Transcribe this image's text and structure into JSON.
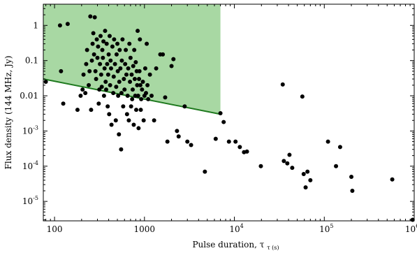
{
  "chart_data": {
    "type": "scatter",
    "xlabel": "Pulse duration, τ",
    "xlabel_sub": "τ (s)",
    "ylabel": "Flux density (144 MHz, Jy)",
    "x_scale": "log",
    "y_scale": "log",
    "xlim": [
      75,
      1000000
    ],
    "ylim": [
      2.8e-06,
      4
    ],
    "grid": false,
    "colors": {
      "points": "#000000",
      "region_fill": "#a8d8a3",
      "line": "#1f7a1f"
    },
    "x_ticks": [
      {
        "value": 100,
        "label": "100"
      },
      {
        "value": 1000,
        "label": "1000"
      },
      {
        "value": 10000,
        "label": "10",
        "exp": "4"
      },
      {
        "value": 100000,
        "label": "10",
        "exp": "5"
      },
      {
        "value": 1000000,
        "label": "10",
        "exp": "6"
      }
    ],
    "y_ticks": [
      {
        "value": 1,
        "label": "1"
      },
      {
        "value": 0.1,
        "label": "0.1"
      },
      {
        "value": 0.01,
        "label": "0.01"
      },
      {
        "value": 0.001,
        "label": "10",
        "exp": "-3"
      },
      {
        "value": 0.0001,
        "label": "10",
        "exp": "-4"
      },
      {
        "value": 1e-05,
        "label": "10",
        "exp": "-5"
      }
    ],
    "shaded_region": {
      "x_range": [
        75,
        7000
      ],
      "lower_line": [
        [
          75,
          0.03
        ],
        [
          7000,
          0.003
        ]
      ],
      "upper": 4
    },
    "points": [
      [
        80,
        0.025
      ],
      [
        115,
        1.0
      ],
      [
        118,
        0.05
      ],
      [
        125,
        0.006
      ],
      [
        140,
        1.1
      ],
      [
        180,
        0.004
      ],
      [
        195,
        0.01
      ],
      [
        205,
        0.015
      ],
      [
        210,
        0.04
      ],
      [
        220,
        0.012
      ],
      [
        225,
        0.08
      ],
      [
        230,
        0.2
      ],
      [
        240,
        0.02
      ],
      [
        245,
        0.05
      ],
      [
        250,
        1.8
      ],
      [
        255,
        0.004
      ],
      [
        260,
        0.1
      ],
      [
        265,
        0.3
      ],
      [
        270,
        0.6
      ],
      [
        275,
        0.15
      ],
      [
        280,
        1.7
      ],
      [
        285,
        0.05
      ],
      [
        290,
        0.03
      ],
      [
        295,
        0.4
      ],
      [
        300,
        0.12
      ],
      [
        305,
        0.25
      ],
      [
        310,
        0.006
      ],
      [
        315,
        0.015
      ],
      [
        320,
        0.08
      ],
      [
        325,
        0.5
      ],
      [
        330,
        0.04
      ],
      [
        335,
        0.018
      ],
      [
        340,
        0.2
      ],
      [
        345,
        0.12
      ],
      [
        350,
        0.35
      ],
      [
        355,
        0.01
      ],
      [
        360,
        0.06
      ],
      [
        365,
        0.7
      ],
      [
        370,
        0.025
      ],
      [
        375,
        0.015
      ],
      [
        380,
        0.3
      ],
      [
        385,
        0.08
      ],
      [
        390,
        0.005
      ],
      [
        395,
        0.04
      ],
      [
        400,
        0.15
      ],
      [
        405,
        0.003
      ],
      [
        410,
        0.5
      ],
      [
        415,
        0.02
      ],
      [
        420,
        0.1
      ],
      [
        425,
        0.06
      ],
      [
        430,
        0.0015
      ],
      [
        440,
        0.25
      ],
      [
        450,
        0.012
      ],
      [
        455,
        0.035
      ],
      [
        460,
        0.4
      ],
      [
        470,
        0.08
      ],
      [
        480,
        0.002
      ],
      [
        485,
        0.018
      ],
      [
        490,
        0.15
      ],
      [
        500,
        0.3
      ],
      [
        505,
        0.05
      ],
      [
        510,
        0.01
      ],
      [
        520,
        0.0008
      ],
      [
        525,
        0.025
      ],
      [
        530,
        0.2
      ],
      [
        540,
        0.06
      ],
      [
        550,
        0.0003
      ],
      [
        555,
        0.012
      ],
      [
        560,
        0.1
      ],
      [
        570,
        0.4
      ],
      [
        580,
        0.005
      ],
      [
        590,
        0.03
      ],
      [
        600,
        0.015
      ],
      [
        610,
        0.08
      ],
      [
        620,
        0.2
      ],
      [
        630,
        0.04
      ],
      [
        640,
        0.003
      ],
      [
        650,
        0.01
      ],
      [
        660,
        0.06
      ],
      [
        670,
        0.002
      ],
      [
        680,
        0.3
      ],
      [
        690,
        0.025
      ],
      [
        700,
        0.12
      ],
      [
        710,
        0.005
      ],
      [
        720,
        0.04
      ],
      [
        730,
        0.008
      ],
      [
        740,
        0.015
      ],
      [
        750,
        0.07
      ],
      [
        760,
        0.0015
      ],
      [
        770,
        0.2
      ],
      [
        780,
        0.03
      ],
      [
        790,
        0.01
      ],
      [
        800,
        0.09
      ],
      [
        810,
        0.004
      ],
      [
        820,
        0.05
      ],
      [
        830,
        0.02
      ],
      [
        840,
        0.7
      ],
      [
        850,
        0.01
      ],
      [
        860,
        0.0012
      ],
      [
        870,
        0.03
      ],
      [
        880,
        0.05
      ],
      [
        890,
        0.4
      ],
      [
        900,
        0.02
      ],
      [
        910,
        0.004
      ],
      [
        920,
        0.008
      ],
      [
        940,
        0.015
      ],
      [
        960,
        0.025
      ],
      [
        980,
        0.002
      ],
      [
        1000,
        0.01
      ],
      [
        1020,
        0.06
      ],
      [
        1040,
        0.012
      ],
      [
        1060,
        0.3
      ],
      [
        1080,
        0.02
      ],
      [
        1100,
        0.008
      ],
      [
        1150,
        0.04
      ],
      [
        1200,
        0.01
      ],
      [
        1280,
        0.002
      ],
      [
        1350,
        0.06
      ],
      [
        1500,
        0.15
      ],
      [
        1600,
        0.15
      ],
      [
        1700,
        0.009
      ],
      [
        1800,
        0.0005
      ],
      [
        2000,
        0.07
      ],
      [
        2100,
        0.11
      ],
      [
        2300,
        0.001
      ],
      [
        2400,
        0.0007
      ],
      [
        2800,
        0.005
      ],
      [
        3000,
        0.0005
      ],
      [
        3300,
        0.0004
      ],
      [
        4700,
        7e-05
      ],
      [
        6200,
        0.0006
      ],
      [
        7000,
        0.0032
      ],
      [
        7600,
        0.0018
      ],
      [
        8700,
        0.0005
      ],
      [
        10300,
        0.0005
      ],
      [
        11500,
        0.00035
      ],
      [
        12800,
        0.00025
      ],
      [
        13800,
        0.00026
      ],
      [
        19700,
        0.0001
      ],
      [
        34500,
        0.021
      ],
      [
        35500,
        0.00014
      ],
      [
        38800,
        0.00012
      ],
      [
        41000,
        0.00021
      ],
      [
        44000,
        9e-05
      ],
      [
        57000,
        0.0095
      ],
      [
        59000,
        6e-05
      ],
      [
        62000,
        2.5e-05
      ],
      [
        65000,
        7e-05
      ],
      [
        70000,
        4e-05
      ],
      [
        110000,
        0.0005
      ],
      [
        135000,
        0.0001
      ],
      [
        150000,
        0.00035
      ],
      [
        200000,
        5e-05
      ],
      [
        205000,
        2e-05
      ],
      [
        570000,
        4.2e-05
      ],
      [
        960000,
        3e-06
      ]
    ]
  }
}
